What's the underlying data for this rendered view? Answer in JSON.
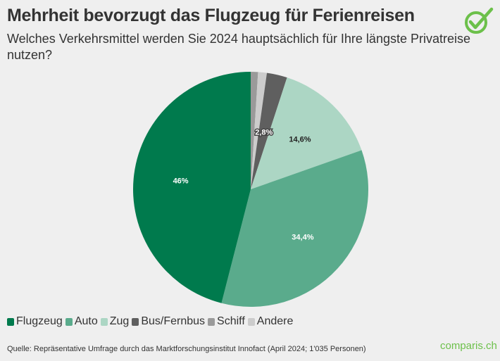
{
  "title": "Mehrheit bevorzugt das Flugzeug für Ferienreisen",
  "subtitle": "Welches Verkehrsmittel werden Sie 2024 hauptsächlich für Ihre längste Privatreise nutzen?",
  "source": "Quelle: Repräsentative Umfrage durch das Marktforschungsinstitut Innofact (April 2024; 1'035 Personen)",
  "brand": "comparis.ch",
  "brand_color": "#6cc04a",
  "chart_data": {
    "type": "pie",
    "legend_placement": "bottom-left",
    "slices": [
      {
        "name": "Flugzeug",
        "value": 46,
        "label": "46%",
        "color": "#007a4d"
      },
      {
        "name": "Auto",
        "value": 34.4,
        "label": "34,4%",
        "color": "#5aab8c"
      },
      {
        "name": "Zug",
        "value": 14.6,
        "label": "14,6%",
        "color": "#acd6c4"
      },
      {
        "name": "Bus/Fernbus",
        "value": 2.8,
        "label": "2,8%",
        "color": "#5f5f5f"
      },
      {
        "name": "Schiff",
        "value": 1.0,
        "label": "",
        "color": "#9a9a9a"
      },
      {
        "name": "Andere",
        "value": 1.2,
        "label": "",
        "color": "#cccccc"
      }
    ],
    "clockwise_order": [
      "Schiff",
      "Andere",
      "Bus/Fernbus",
      "Zug",
      "Auto",
      "Flugzeug"
    ]
  }
}
